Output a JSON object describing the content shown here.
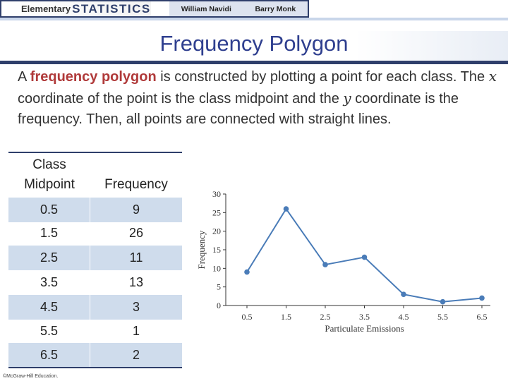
{
  "header": {
    "brand_small": "Elementary",
    "brand_big": "STATISTICS",
    "author1": "William Navidi",
    "author2": "Barry Monk"
  },
  "slide": {
    "title": "Frequency Polygon",
    "para_a": "A ",
    "para_term": "frequency polygon",
    "para_b": " is constructed by plotting a point for each class. The ",
    "para_x": "x",
    "para_c": " coordinate of the point is the class midpoint and the ",
    "para_y": "y",
    "para_d": " coordinate is the frequency.  Then, all points are connected with straight lines.",
    "copyright": "©McGraw-Hill Education."
  },
  "table": {
    "col1_line1": "Class",
    "col1_line2": "Midpoint",
    "col2": "Frequency",
    "rows": [
      {
        "mid": "0.5",
        "freq": "9"
      },
      {
        "mid": "1.5",
        "freq": "26"
      },
      {
        "mid": "2.5",
        "freq": "11"
      },
      {
        "mid": "3.5",
        "freq": "13"
      },
      {
        "mid": "4.5",
        "freq": "3"
      },
      {
        "mid": "5.5",
        "freq": "1"
      },
      {
        "mid": "6.5",
        "freq": "2"
      }
    ]
  },
  "chart_data": {
    "type": "line",
    "x": [
      0.5,
      1.5,
      2.5,
      3.5,
      4.5,
      5.5,
      6.5
    ],
    "x_tick_labels": [
      "0.5",
      "1.5",
      "2.5",
      "3.5",
      "4.5",
      "5.5",
      "6.5"
    ],
    "series": [
      {
        "values": [
          9,
          26,
          11,
          13,
          3,
          1,
          2
        ]
      }
    ],
    "y_ticks": [
      0,
      5,
      10,
      15,
      20,
      25,
      30
    ],
    "ylim": [
      0,
      30
    ],
    "xlabel": "Particulate Emissions",
    "ylabel": "Frequency",
    "grid": false,
    "color": "#4a7cb8"
  }
}
